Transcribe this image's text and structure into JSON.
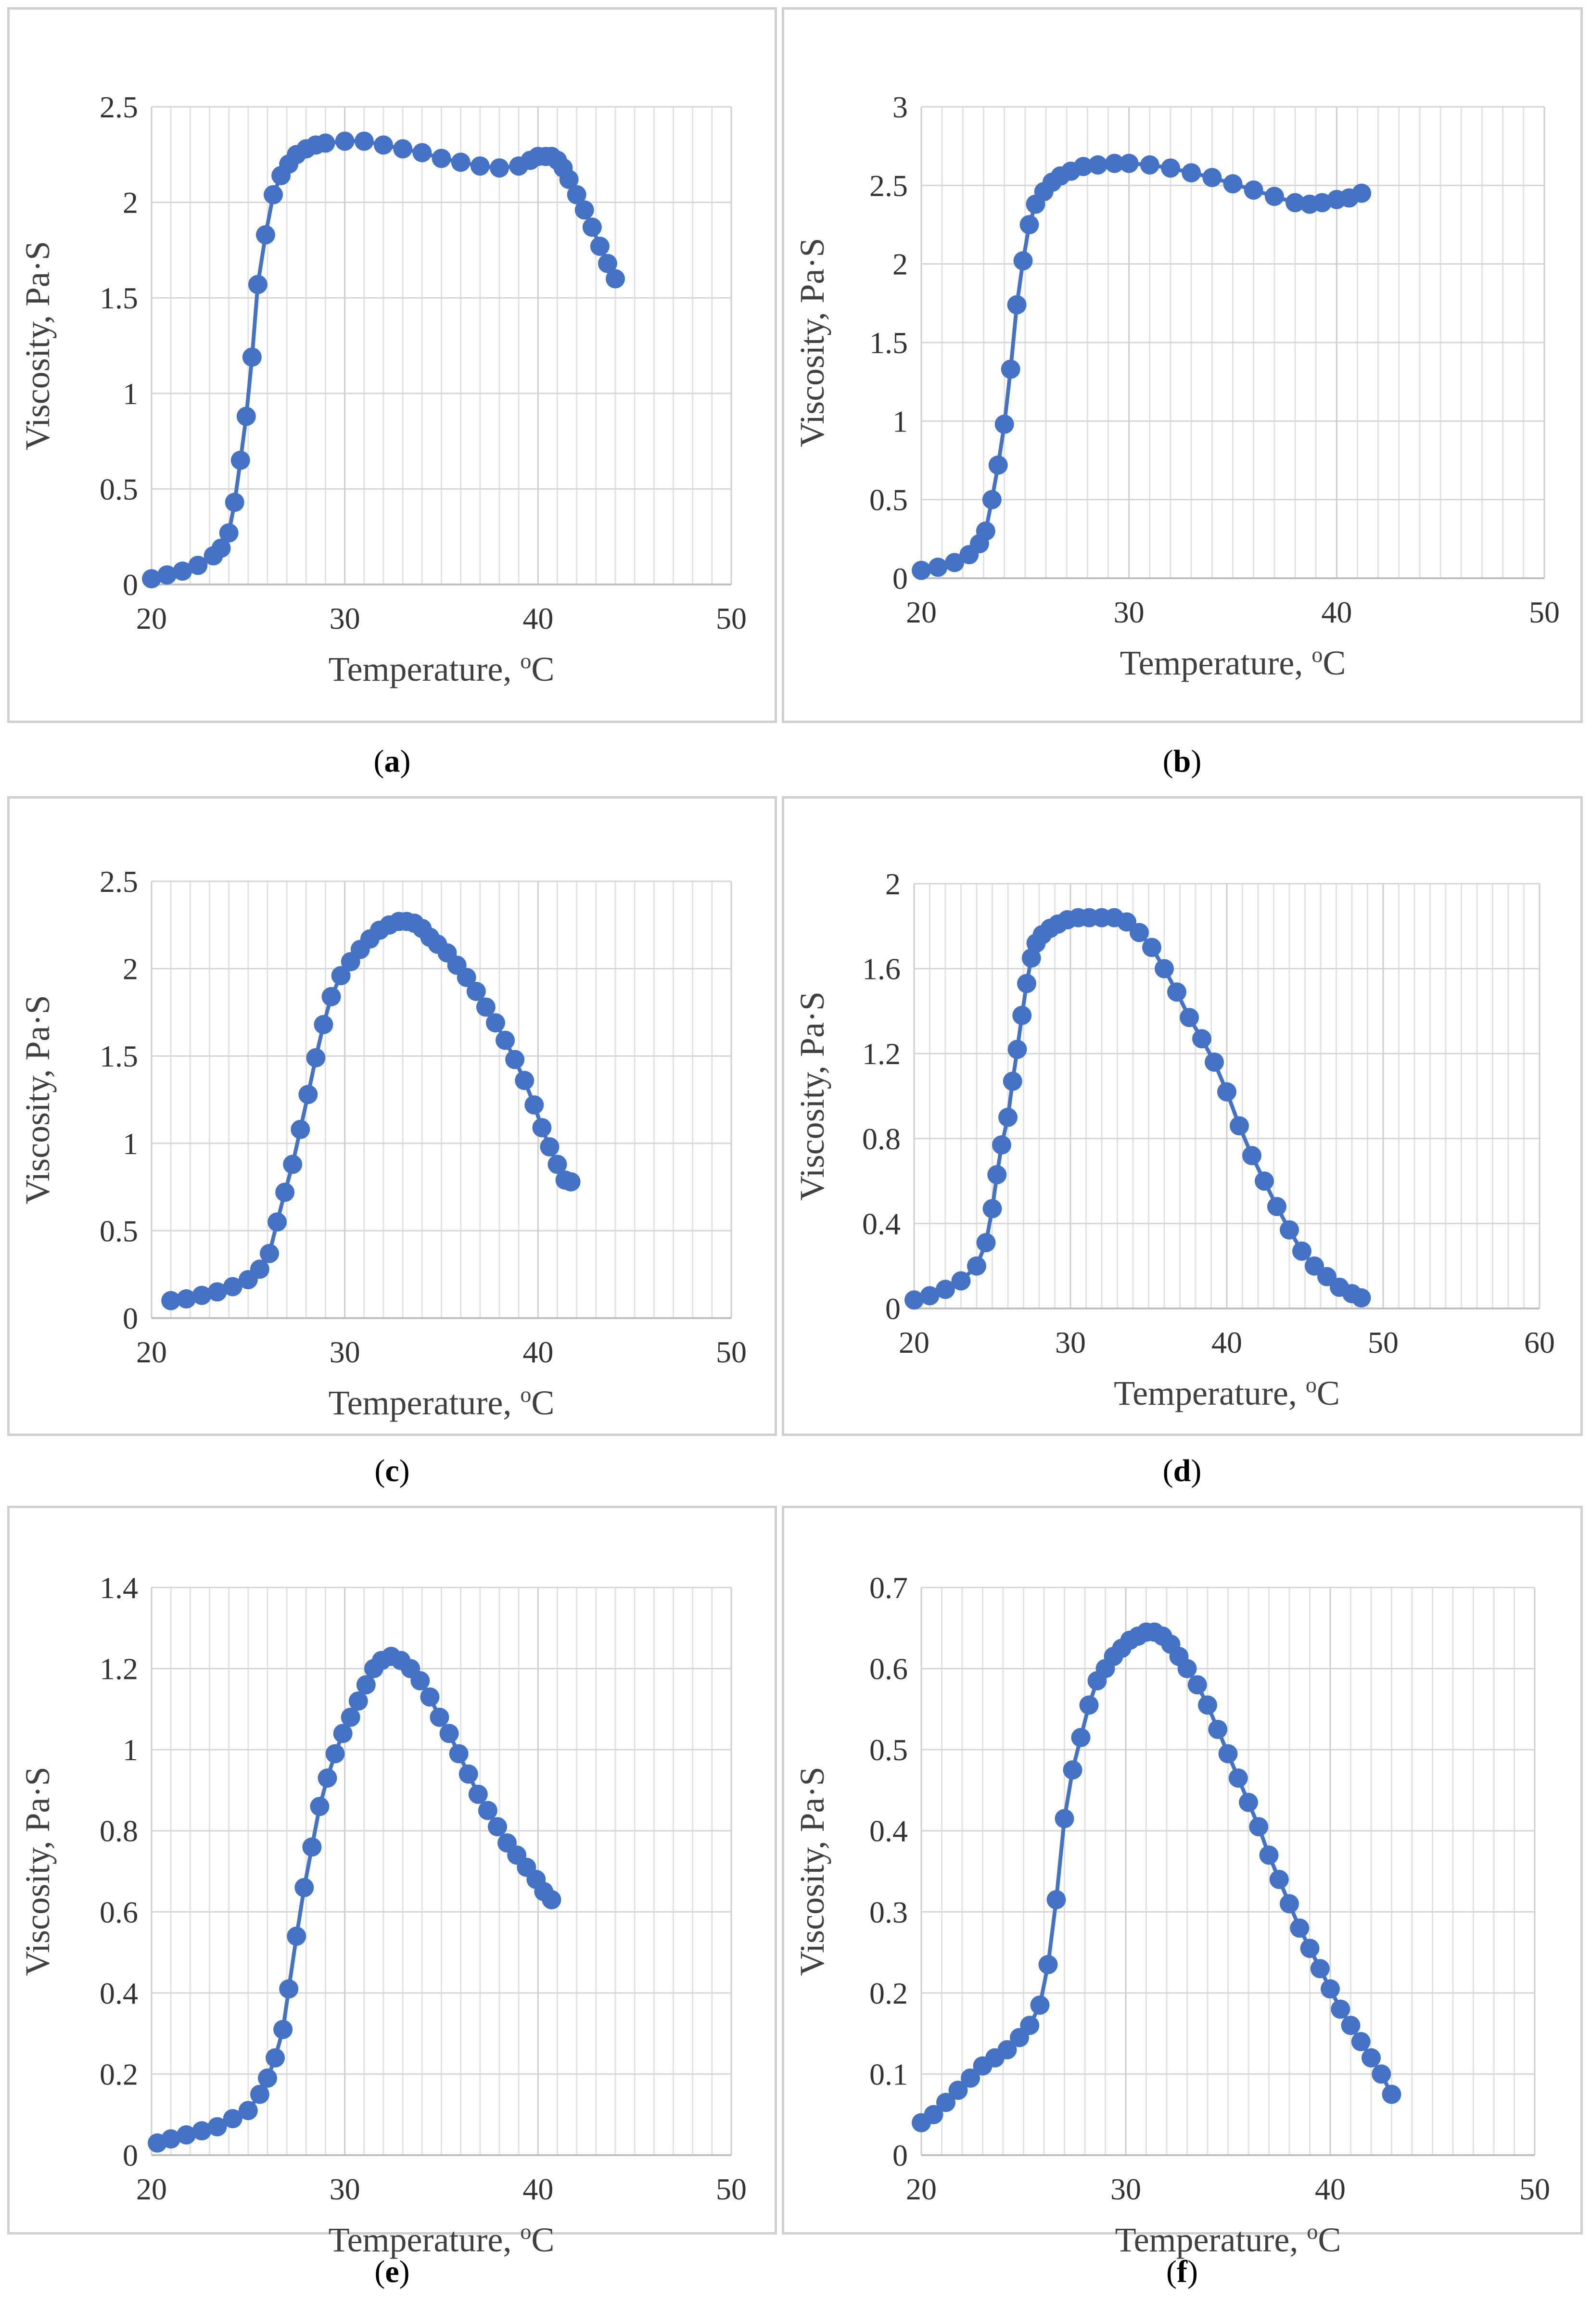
{
  "chart_data": [
    {
      "id": "a",
      "type": "line",
      "marker": "circle",
      "color": "#4472C4",
      "caption_open": "(",
      "caption_letter": "a",
      "caption_close": ")",
      "xlabel": "Temperature, ",
      "xlabel_sup": "o",
      "xlabel_unit": "C",
      "ylabel": "Viscosity, Pa·S",
      "xlim": [
        20,
        50
      ],
      "ylim": [
        0,
        2.5
      ],
      "xmajor": 10,
      "xminor": 1,
      "ymajor": 0.5,
      "xticks": [
        "20",
        "30",
        "40",
        "50"
      ],
      "yticks": [
        "0",
        "0.5",
        "1",
        "1.5",
        "2",
        "2.5"
      ],
      "series": [
        {
          "name": "a",
          "x": [
            20,
            20.8,
            21.6,
            22.4,
            23.2,
            23.6,
            24,
            24.3,
            24.6,
            24.9,
            25.2,
            25.5,
            25.9,
            26.3,
            26.7,
            27.1,
            27.5,
            28,
            28.5,
            29,
            30,
            31,
            32,
            33,
            34,
            35,
            36,
            37,
            38,
            39,
            39.6,
            40,
            40.4,
            40.7,
            41,
            41.3,
            41.6,
            42,
            42.4,
            42.8,
            43.2,
            43.6,
            44
          ],
          "y": [
            0.03,
            0.05,
            0.07,
            0.1,
            0.15,
            0.19,
            0.27,
            0.43,
            0.65,
            0.88,
            1.19,
            1.57,
            1.83,
            2.04,
            2.14,
            2.2,
            2.25,
            2.28,
            2.3,
            2.31,
            2.32,
            2.32,
            2.3,
            2.28,
            2.26,
            2.23,
            2.21,
            2.19,
            2.18,
            2.19,
            2.22,
            2.24,
            2.24,
            2.24,
            2.22,
            2.18,
            2.12,
            2.04,
            1.96,
            1.87,
            1.77,
            1.68,
            1.6
          ]
        }
      ]
    },
    {
      "id": "b",
      "type": "line",
      "marker": "circle",
      "color": "#4472C4",
      "caption_open": "(",
      "caption_letter": "b",
      "caption_close": ")",
      "xlabel": "Temperature, ",
      "xlabel_sup": "o",
      "xlabel_unit": "C",
      "ylabel": "Viscosity, Pa·S",
      "xlim": [
        20,
        50
      ],
      "ylim": [
        0,
        3
      ],
      "xmajor": 10,
      "xminor": 1,
      "ymajor": 0.5,
      "xticks": [
        "20",
        "30",
        "40",
        "50"
      ],
      "yticks": [
        "0",
        "0.5",
        "1",
        "1.5",
        "2",
        "2.5",
        "3"
      ],
      "series": [
        {
          "name": "b",
          "x": [
            20,
            20.8,
            21.6,
            22.3,
            22.8,
            23.1,
            23.4,
            23.7,
            24,
            24.3,
            24.6,
            24.9,
            25.2,
            25.5,
            25.9,
            26.3,
            26.7,
            27.2,
            27.8,
            28.5,
            29.3,
            30,
            31,
            32,
            33,
            34,
            35,
            36,
            37,
            38,
            38.7,
            39.3,
            40,
            40.6,
            41.2
          ],
          "y": [
            0.05,
            0.07,
            0.1,
            0.15,
            0.22,
            0.3,
            0.5,
            0.72,
            0.98,
            1.33,
            1.74,
            2.02,
            2.25,
            2.38,
            2.46,
            2.52,
            2.56,
            2.59,
            2.62,
            2.63,
            2.64,
            2.64,
            2.63,
            2.61,
            2.58,
            2.55,
            2.51,
            2.47,
            2.43,
            2.39,
            2.38,
            2.39,
            2.41,
            2.42,
            2.45
          ]
        }
      ]
    },
    {
      "id": "c",
      "type": "line",
      "marker": "circle",
      "color": "#4472C4",
      "caption_open": "(",
      "caption_letter": "c",
      "caption_close": ")",
      "xlabel": "Temperature, ",
      "xlabel_sup": "o",
      "xlabel_unit": "C",
      "ylabel": "Viscosity, Pa·S",
      "xlim": [
        20,
        50
      ],
      "ylim": [
        0,
        2.5
      ],
      "xmajor": 10,
      "xminor": 1,
      "ymajor": 0.5,
      "xticks": [
        "20",
        "30",
        "40",
        "50"
      ],
      "yticks": [
        "0",
        "0.5",
        "1",
        "1.5",
        "2",
        "2.5"
      ],
      "series": [
        {
          "name": "c",
          "x": [
            21,
            21.8,
            22.6,
            23.4,
            24.2,
            25,
            25.6,
            26.1,
            26.5,
            26.9,
            27.3,
            27.7,
            28.1,
            28.5,
            28.9,
            29.3,
            29.8,
            30.3,
            30.8,
            31.3,
            31.8,
            32.3,
            32.8,
            33.2,
            33.6,
            34,
            34.4,
            34.8,
            35.3,
            35.8,
            36.3,
            36.8,
            37.3,
            37.8,
            38.3,
            38.8,
            39.3,
            39.8,
            40.2,
            40.6,
            41,
            41.4,
            41.7
          ],
          "y": [
            0.1,
            0.11,
            0.13,
            0.15,
            0.18,
            0.22,
            0.28,
            0.37,
            0.55,
            0.72,
            0.88,
            1.08,
            1.28,
            1.49,
            1.68,
            1.84,
            1.96,
            2.04,
            2.11,
            2.17,
            2.22,
            2.25,
            2.27,
            2.27,
            2.26,
            2.23,
            2.18,
            2.14,
            2.09,
            2.02,
            1.95,
            1.87,
            1.78,
            1.69,
            1.59,
            1.48,
            1.36,
            1.22,
            1.09,
            0.98,
            0.88,
            0.79,
            0.78
          ]
        }
      ]
    },
    {
      "id": "d",
      "type": "line",
      "marker": "circle",
      "color": "#4472C4",
      "caption_open": "(",
      "caption_letter": "d",
      "caption_close": ")",
      "xlabel": "Temperature, ",
      "xlabel_sup": "o",
      "xlabel_unit": "C",
      "ylabel": "Viscosity, Pa·S",
      "xlim": [
        20,
        60
      ],
      "ylim": [
        0,
        2
      ],
      "xmajor": 10,
      "xminor": 1,
      "ymajor": 0.4,
      "xticks": [
        "20",
        "30",
        "40",
        "50",
        "60"
      ],
      "yticks": [
        "0",
        "0.4",
        "0.8",
        "1.2",
        "1.6",
        "2"
      ],
      "series": [
        {
          "name": "d",
          "x": [
            20,
            21,
            22,
            23,
            24,
            24.6,
            25,
            25.3,
            25.6,
            26,
            26.3,
            26.6,
            26.9,
            27.2,
            27.5,
            27.8,
            28.2,
            28.7,
            29.2,
            29.8,
            30.5,
            31.2,
            32,
            32.8,
            33.6,
            34.4,
            35.2,
            36,
            36.8,
            37.6,
            38.4,
            39.2,
            40,
            40.8,
            41.6,
            42.4,
            43.2,
            44,
            44.8,
            45.6,
            46.4,
            47.2,
            48,
            48.6
          ],
          "y": [
            0.04,
            0.06,
            0.09,
            0.13,
            0.2,
            0.31,
            0.47,
            0.63,
            0.77,
            0.9,
            1.07,
            1.22,
            1.38,
            1.53,
            1.65,
            1.72,
            1.76,
            1.79,
            1.81,
            1.83,
            1.84,
            1.84,
            1.84,
            1.84,
            1.82,
            1.77,
            1.7,
            1.6,
            1.49,
            1.37,
            1.27,
            1.16,
            1.02,
            0.86,
            0.72,
            0.6,
            0.48,
            0.37,
            0.27,
            0.2,
            0.15,
            0.1,
            0.07,
            0.05
          ]
        }
      ]
    },
    {
      "id": "e",
      "type": "line",
      "marker": "circle",
      "color": "#4472C4",
      "caption_open": "(",
      "caption_letter": "e",
      "caption_close": ")",
      "xlabel": "Temperature, ",
      "xlabel_sup": "o",
      "xlabel_unit": "C",
      "ylabel": "Viscosity, Pa·S",
      "xlim": [
        20,
        50
      ],
      "ylim": [
        0,
        1.4
      ],
      "xmajor": 10,
      "xminor": 1,
      "ymajor": 0.2,
      "xticks": [
        "20",
        "30",
        "40",
        "50"
      ],
      "yticks": [
        "0",
        "0.2",
        "0.4",
        "0.6",
        "0.8",
        "1",
        "1.2",
        "1.4"
      ],
      "series": [
        {
          "name": "e",
          "x": [
            20.3,
            21,
            21.8,
            22.6,
            23.4,
            24.2,
            25,
            25.6,
            26,
            26.4,
            26.8,
            27.1,
            27.5,
            27.9,
            28.3,
            28.7,
            29.1,
            29.5,
            29.9,
            30.3,
            30.7,
            31.1,
            31.5,
            31.9,
            32.4,
            32.9,
            33.4,
            33.9,
            34.4,
            34.9,
            35.4,
            35.9,
            36.4,
            36.9,
            37.4,
            37.9,
            38.4,
            38.9,
            39.4,
            39.9,
            40.3,
            40.7
          ],
          "y": [
            0.03,
            0.04,
            0.05,
            0.06,
            0.07,
            0.09,
            0.11,
            0.15,
            0.19,
            0.24,
            0.31,
            0.41,
            0.54,
            0.66,
            0.76,
            0.86,
            0.93,
            0.99,
            1.04,
            1.08,
            1.12,
            1.16,
            1.2,
            1.22,
            1.23,
            1.22,
            1.2,
            1.17,
            1.13,
            1.08,
            1.04,
            0.99,
            0.94,
            0.89,
            0.85,
            0.81,
            0.77,
            0.74,
            0.71,
            0.68,
            0.65,
            0.63
          ]
        }
      ]
    },
    {
      "id": "f",
      "type": "line",
      "marker": "circle",
      "color": "#4472C4",
      "caption_open": "(",
      "caption_letter": "f",
      "caption_close": ")",
      "xlabel": "Temperature, ",
      "xlabel_sup": "o",
      "xlabel_unit": "C",
      "ylabel": "Viscosity, Pa·S",
      "xlim": [
        20,
        50
      ],
      "ylim": [
        0,
        0.7
      ],
      "xmajor": 10,
      "xminor": 1,
      "ymajor": 0.1,
      "xticks": [
        "20",
        "30",
        "40",
        "50"
      ],
      "yticks": [
        "0",
        "0.1",
        "0.2",
        "0.3",
        "0.4",
        "0.5",
        "0.6",
        "0.7"
      ],
      "series": [
        {
          "name": "f",
          "x": [
            20,
            20.6,
            21.2,
            21.8,
            22.4,
            23,
            23.6,
            24.2,
            24.8,
            25.3,
            25.8,
            26.2,
            26.6,
            27,
            27.4,
            27.8,
            28.2,
            28.6,
            29,
            29.4,
            29.8,
            30.2,
            30.6,
            31,
            31.4,
            31.8,
            32.2,
            32.6,
            33,
            33.5,
            34,
            34.5,
            35,
            35.5,
            36,
            36.5,
            37,
            37.5,
            38,
            38.5,
            39,
            39.5,
            40,
            40.5,
            41,
            41.5,
            42,
            42.5,
            43
          ],
          "y": [
            0.04,
            0.05,
            0.065,
            0.08,
            0.095,
            0.11,
            0.12,
            0.13,
            0.145,
            0.16,
            0.185,
            0.235,
            0.315,
            0.415,
            0.475,
            0.515,
            0.555,
            0.585,
            0.6,
            0.615,
            0.625,
            0.635,
            0.64,
            0.645,
            0.645,
            0.64,
            0.63,
            0.615,
            0.6,
            0.58,
            0.555,
            0.525,
            0.495,
            0.465,
            0.435,
            0.405,
            0.37,
            0.34,
            0.31,
            0.28,
            0.255,
            0.23,
            0.205,
            0.18,
            0.16,
            0.14,
            0.12,
            0.1,
            0.075
          ]
        }
      ]
    }
  ]
}
